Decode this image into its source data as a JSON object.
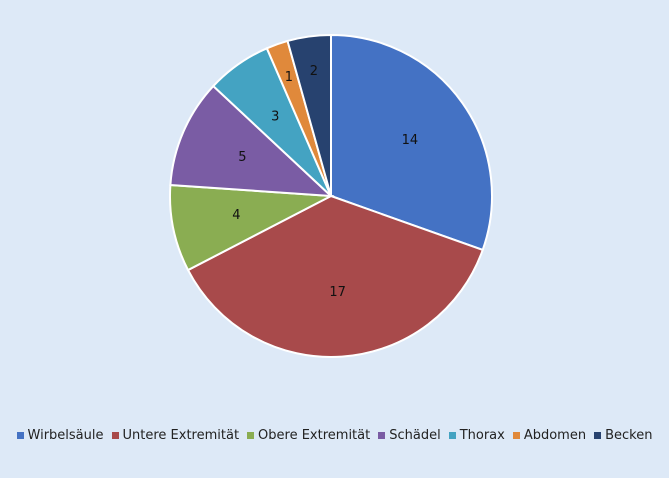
{
  "chart_data": {
    "type": "pie",
    "categories": [
      "Wirbelsäule",
      "Untere Extremität",
      "Obere Extremität",
      "Schädel",
      "Thorax",
      "Abdomen",
      "Becken"
    ],
    "values": [
      14,
      17,
      4,
      5,
      3,
      1,
      2
    ],
    "colors": [
      "#4472c4",
      "#a84a4b",
      "#8aad52",
      "#7a5ca4",
      "#44a3c2",
      "#e0893b",
      "#27426f"
    ],
    "legend": "bottom"
  }
}
